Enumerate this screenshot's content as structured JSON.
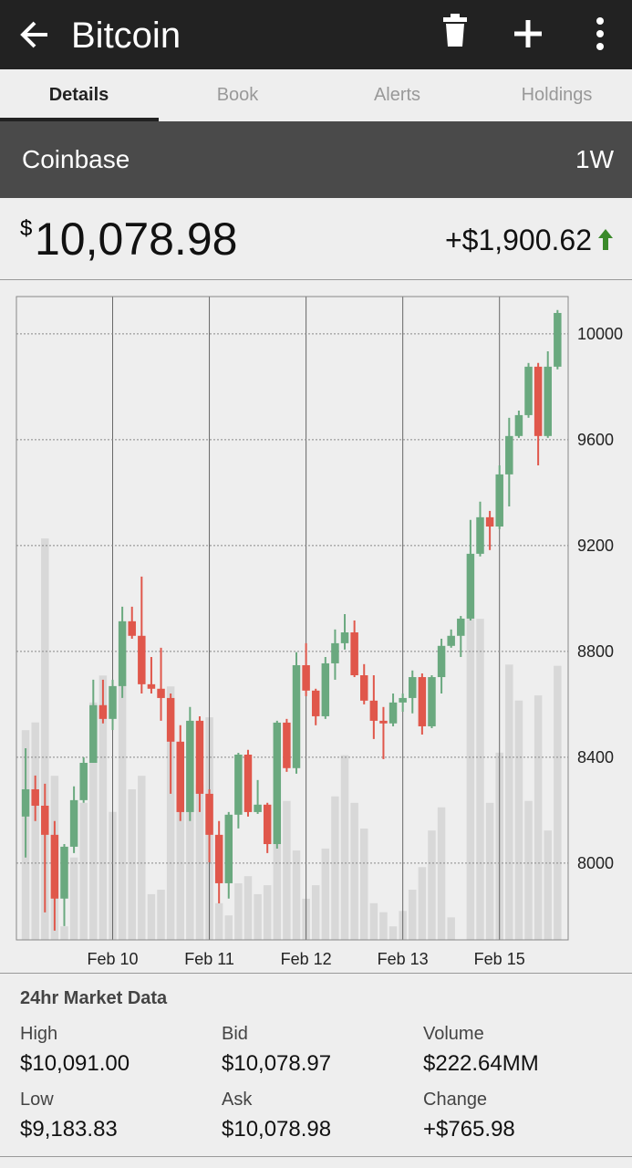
{
  "app_bar": {
    "title": "Bitcoin"
  },
  "tabs": [
    "Details",
    "Book",
    "Alerts",
    "Holdings"
  ],
  "exchange": {
    "name": "Coinbase",
    "period": "1W"
  },
  "price": {
    "currency_symbol": "$",
    "amount": "10,078.98",
    "change": "+$1,900.62"
  },
  "market_data": {
    "title": "24hr Market Data",
    "items": [
      {
        "label": "High",
        "value": "$10,091.00"
      },
      {
        "label": "Bid",
        "value": "$10,078.97"
      },
      {
        "label": "Volume",
        "value": "$222.64MM"
      },
      {
        "label": "Low",
        "value": "$9,183.83"
      },
      {
        "label": "Ask",
        "value": "$10,078.98"
      },
      {
        "label": "Change",
        "value": "+$765.98"
      }
    ]
  },
  "chart_data": {
    "type": "candlestick",
    "open": [
      8176,
      8279,
      8217,
      8107,
      7866,
      8062,
      8238,
      8379,
      8597,
      8545,
      8669,
      8914,
      8859,
      8676,
      8659,
      8624,
      8459,
      8193,
      8538,
      8262,
      8107,
      7924,
      8183,
      8410,
      8193,
      8221,
      8072,
      8531,
      8359,
      8748,
      8652,
      8555,
      8755,
      8831,
      8872,
      8710,
      8614,
      8538,
      8528,
      8607,
      8624,
      8703,
      8517,
      8703,
      8821,
      8859,
      8924,
      9169,
      9307,
      9272,
      9469,
      9614,
      9693,
      9876,
      9614,
      9876
    ],
    "high": [
      8434,
      8331,
      8300,
      8159,
      8072,
      8290,
      8400,
      8693,
      8693,
      8693,
      8969,
      8969,
      9083,
      8779,
      8814,
      8641,
      8521,
      8590,
      8555,
      8279,
      8159,
      8193,
      8417,
      8428,
      8314,
      8228,
      8538,
      8545,
      8797,
      8831,
      8659,
      8779,
      8883,
      8941,
      8917,
      8752,
      8710,
      8590,
      8641,
      8641,
      8728,
      8717,
      8710,
      8848,
      8883,
      8934,
      9297,
      9366,
      9331,
      9503,
      9683,
      9710,
      9890,
      9890,
      9934,
      10090
    ],
    "low": [
      8021,
      8159,
      7814,
      7745,
      7762,
      8038,
      8228,
      8379,
      8528,
      8503,
      8624,
      8848,
      8641,
      8641,
      8538,
      8262,
      8159,
      8159,
      8193,
      8003,
      7848,
      7866,
      8131,
      8176,
      8186,
      8038,
      8055,
      8345,
      8338,
      8631,
      8521,
      8545,
      8693,
      8807,
      8703,
      8600,
      8469,
      8393,
      8517,
      8572,
      8566,
      8486,
      8510,
      8641,
      8814,
      8779,
      8917,
      9159,
      9183,
      9262,
      9348,
      9607,
      9683,
      9503,
      9607,
      9866
    ],
    "close": [
      8279,
      8217,
      8107,
      7866,
      8062,
      8238,
      8379,
      8597,
      8545,
      8669,
      8914,
      8859,
      8676,
      8659,
      8624,
      8459,
      8193,
      8538,
      8262,
      8107,
      7924,
      8183,
      8410,
      8193,
      8221,
      8072,
      8531,
      8359,
      8748,
      8652,
      8555,
      8755,
      8831,
      8872,
      8710,
      8614,
      8538,
      8528,
      8607,
      8624,
      8703,
      8517,
      8703,
      8821,
      8859,
      8924,
      9169,
      9307,
      9272,
      9469,
      9614,
      9693,
      9876,
      9614,
      9876,
      10079
    ],
    "volume": [
      32.6,
      33.8,
      62.4,
      25.5,
      2.1,
      12.8,
      21.3,
      36.9,
      41.1,
      19.9,
      39.7,
      23.4,
      25.5,
      7.1,
      7.8,
      39.4,
      24.1,
      32.6,
      24.1,
      34.6,
      5.7,
      3.8,
      8.8,
      9.9,
      7.1,
      8.5,
      15.6,
      21.6,
      13.9,
      6.4,
      8.5,
      14.2,
      22.3,
      28.7,
      21.3,
      17.3,
      5.7,
      4.3,
      2.1,
      4.5,
      7.8,
      11.3,
      17.0,
      20.6,
      3.5,
      0,
      49.9,
      49.9,
      21.3,
      29.1,
      42.8,
      37.2,
      21.6,
      38.0,
      17.0,
      42.6
    ],
    "volume_lim": [
      0,
      100
    ],
    "xlim": [
      -0.95,
      56.1
    ],
    "xticks": [
      {
        "value": 9,
        "label": "Feb 10"
      },
      {
        "value": 19,
        "label": "Feb 11"
      },
      {
        "value": 29,
        "label": "Feb 12"
      },
      {
        "value": 39,
        "label": "Feb 13"
      },
      {
        "value": 49,
        "label": "Feb 15"
      }
    ],
    "ylim": [
      7710,
      10141
    ],
    "yticks": [
      8000,
      8400,
      8800,
      9200,
      9600,
      10000
    ],
    "grid": true,
    "up_color": "#6aa97f",
    "down_color": "#e0574b",
    "volume_color": "#d8d8d8"
  }
}
